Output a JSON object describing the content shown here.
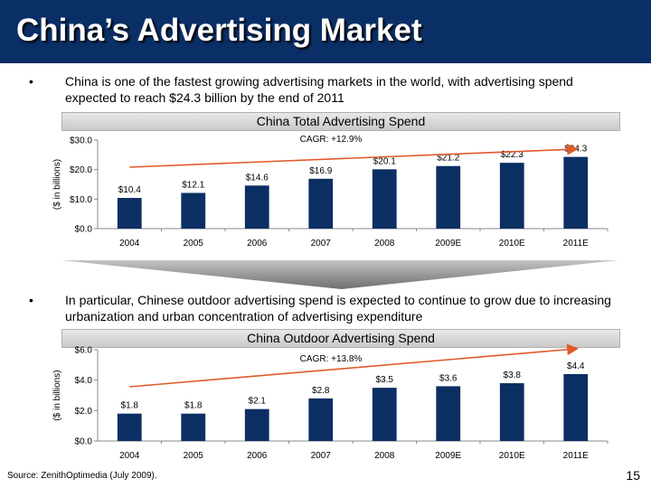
{
  "slide": {
    "title": "China’s Advertising Market",
    "bullet1": "China is one of the fastest growing advertising markets in the world, with advertising spend expected to reach $24.3 billion by the end of 2011",
    "bullet2": "In particular, Chinese outdoor advertising spend is expected to continue to grow due to increasing urbanization and urban concentration of advertising expenditure",
    "bullet_symbol": "•",
    "source": "Source: ZenithOptimedia (July 2009).",
    "page_number": "15"
  },
  "colors": {
    "title_bar": "#0a2f66",
    "bar": "#0c2f63",
    "arrow": "#e05a2b"
  },
  "chart_data": [
    {
      "type": "bar",
      "title": "China Total Advertising Spend",
      "ylabel": "($ in billions)",
      "categories": [
        "2004",
        "2005",
        "2006",
        "2007",
        "2008",
        "2009E",
        "2010E",
        "2011E"
      ],
      "values": [
        10.4,
        12.1,
        14.6,
        16.9,
        20.1,
        21.2,
        22.3,
        24.3
      ],
      "value_labels": [
        "$10.4",
        "$12.1",
        "$14.6",
        "$16.9",
        "$20.1",
        "$21.2",
        "$22.3",
        "$24.3"
      ],
      "ylim": [
        0,
        30
      ],
      "yticks": [
        0,
        10,
        20,
        30
      ],
      "ytick_labels": [
        "$0.0",
        "$10.0",
        "$20.0",
        "$30.0"
      ],
      "annotation": "CAGR: +12.9%",
      "grid": false
    },
    {
      "type": "bar",
      "title": "China Outdoor Advertising Spend",
      "ylabel": "($ in billions)",
      "categories": [
        "2004",
        "2005",
        "2006",
        "2007",
        "2008",
        "2009E",
        "2010E",
        "2011E"
      ],
      "values": [
        1.8,
        1.8,
        2.1,
        2.8,
        3.5,
        3.6,
        3.8,
        4.4
      ],
      "value_labels": [
        "$1.8",
        "$1.8",
        "$2.1",
        "$2.8",
        "$3.5",
        "$3.6",
        "$3.8",
        "$4.4"
      ],
      "ylim": [
        0,
        6
      ],
      "yticks": [
        0,
        2,
        4,
        6
      ],
      "ytick_labels": [
        "$0.0",
        "$2.0",
        "$4.0",
        "$6.0"
      ],
      "annotation": "CAGR: +13.8%",
      "grid": false
    }
  ]
}
